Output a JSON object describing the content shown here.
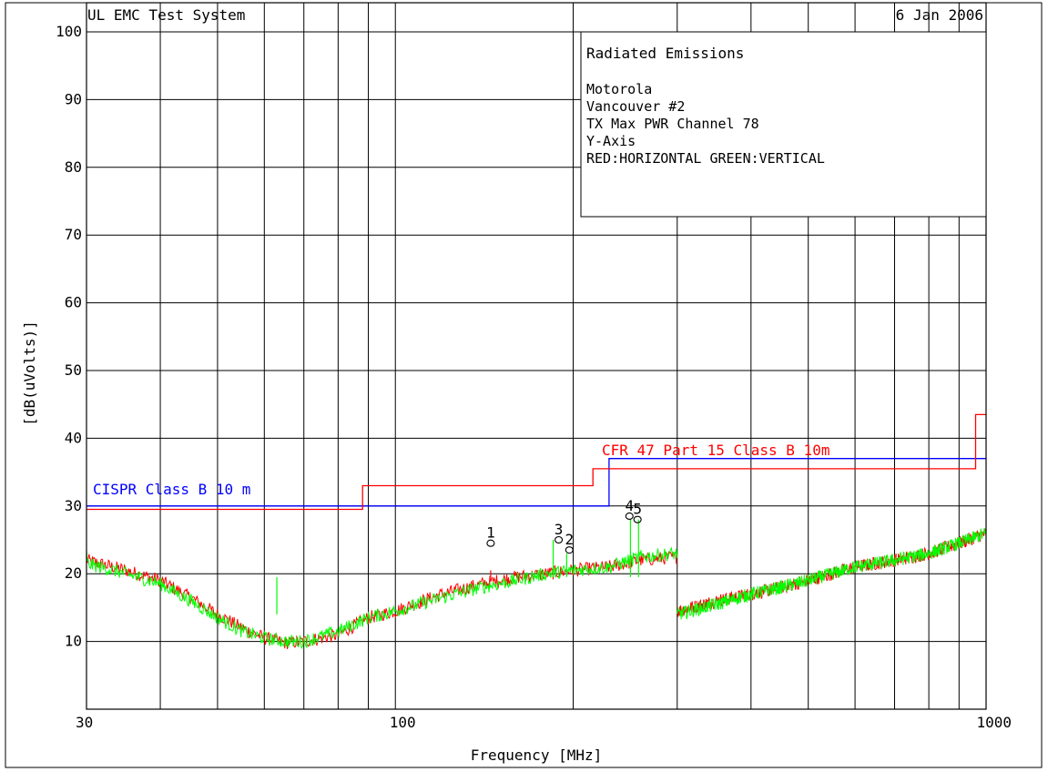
{
  "header": {
    "system": "UL EMC Test System",
    "date": "6 Jan 2006"
  },
  "info_box": {
    "title": "Radiated Emissions",
    "lines": [
      "Motorola",
      "Vancouver #2",
      "TX Max PWR Channel 78",
      "Y-Axis",
      "RED:HORIZONTAL GREEN:VERTICAL"
    ]
  },
  "chart_data": {
    "type": "line",
    "xlabel": "Frequency [MHz]",
    "ylabel": "[dB(uVolts)]",
    "x_scale": "log",
    "xlim": [
      30,
      1000
    ],
    "ylim": [
      0,
      100
    ],
    "x_ticks": [
      30,
      100,
      1000
    ],
    "y_ticks": [
      10,
      20,
      30,
      40,
      50,
      60,
      70,
      80,
      90,
      100
    ],
    "grid": true,
    "colors": {
      "horizontal": "#ff0000",
      "vertical": "#00ff00",
      "cispr": "#0000ff",
      "fcc": "#ff0000"
    },
    "limits": [
      {
        "name": "CISPR Class B 10 m",
        "color": "#0000ff",
        "points": [
          [
            30,
            30
          ],
          [
            230,
            30
          ],
          [
            230,
            37
          ],
          [
            1000,
            37
          ]
        ]
      },
      {
        "name": "CFR 47 Part 15  Class B 10m",
        "color": "#ff0000",
        "points": [
          [
            30,
            29.5
          ],
          [
            88,
            29.5
          ],
          [
            88,
            33
          ],
          [
            216,
            33
          ],
          [
            216,
            35.5
          ],
          [
            960,
            35.5
          ],
          [
            960,
            43.5
          ],
          [
            1000,
            43.5
          ]
        ]
      }
    ],
    "traces": [
      {
        "polarization": "horizontal",
        "color": "#ff0000",
        "segments": [
          [
            [
              30,
              22
            ],
            [
              35,
              20.5
            ],
            [
              40,
              19
            ],
            [
              45,
              16.5
            ],
            [
              50,
              14
            ],
            [
              55,
              12
            ],
            [
              60,
              10.5
            ],
            [
              65,
              9.8
            ],
            [
              70,
              10
            ],
            [
              80,
              11
            ],
            [
              90,
              13.5
            ],
            [
              100,
              14.5
            ],
            [
              120,
              17
            ],
            [
              140,
              18.5
            ],
            [
              160,
              19.5
            ],
            [
              180,
              20
            ],
            [
              200,
              20.5
            ],
            [
              230,
              21
            ],
            [
              260,
              22
            ],
            [
              300,
              22.5
            ]
          ],
          [
            [
              300,
              14.5
            ],
            [
              350,
              16
            ],
            [
              400,
              17
            ],
            [
              450,
              18
            ],
            [
              500,
              19
            ],
            [
              600,
              21
            ],
            [
              700,
              22
            ],
            [
              800,
              23
            ],
            [
              900,
              24.5
            ],
            [
              1000,
              26
            ]
          ]
        ]
      },
      {
        "polarization": "vertical",
        "color": "#00ff00",
        "segments": [
          [
            [
              30,
              21.5
            ],
            [
              35,
              20
            ],
            [
              40,
              18.5
            ],
            [
              45,
              16
            ],
            [
              50,
              13.5
            ],
            [
              55,
              11.5
            ],
            [
              60,
              10.5
            ],
            [
              65,
              10
            ],
            [
              70,
              10
            ],
            [
              80,
              11.5
            ],
            [
              90,
              13.5
            ],
            [
              100,
              14.5
            ],
            [
              120,
              16.5
            ],
            [
              140,
              18
            ],
            [
              160,
              19
            ],
            [
              180,
              20
            ],
            [
              200,
              20.5
            ],
            [
              230,
              21
            ],
            [
              260,
              22.5
            ],
            [
              300,
              23
            ]
          ],
          [
            [
              300,
              14
            ],
            [
              350,
              15.5
            ],
            [
              400,
              17
            ],
            [
              450,
              18
            ],
            [
              500,
              19
            ],
            [
              600,
              21
            ],
            [
              700,
              22
            ],
            [
              800,
              23
            ],
            [
              900,
              24.5
            ],
            [
              1000,
              26
            ]
          ]
        ]
      }
    ],
    "spikes": [
      {
        "x": 145,
        "y": 20.5,
        "color": "#ff0000"
      },
      {
        "x": 185,
        "y": 25,
        "color": "#00ff00"
      },
      {
        "x": 195,
        "y": 23,
        "color": "#00ff00"
      },
      {
        "x": 250,
        "y": 28,
        "color": "#00ff00"
      },
      {
        "x": 258,
        "y": 28,
        "color": "#00ff00"
      },
      {
        "x": 63,
        "y": 14,
        "color": "#00ff00"
      }
    ],
    "markers": [
      {
        "label": "1",
        "x": 145,
        "y": 24.5
      },
      {
        "label": "2",
        "x": 197,
        "y": 23.5
      },
      {
        "label": "3",
        "x": 189,
        "y": 25
      },
      {
        "label": "4",
        "x": 249,
        "y": 28.5
      },
      {
        "label": "5",
        "x": 257,
        "y": 28
      }
    ]
  }
}
